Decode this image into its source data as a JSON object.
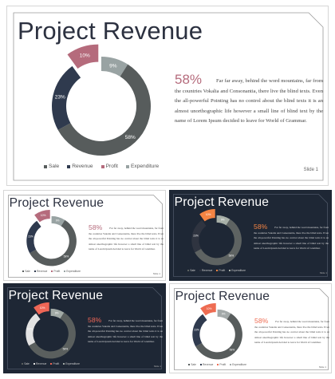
{
  "title": "Project Revenue",
  "big_percent": "58%",
  "body_text": "Far far away, behind the word mountains, far from the countries Vokalia and Consonantia, there live the blind texts. Even the all-powerful Pointing has no control about the blind texts it is an almost unorthographic life however a small line of blind text by the name of Lorem Ipsum decided to leave for World of Grammar.",
  "slide_number": "Slide 1",
  "chart_data": {
    "type": "pie",
    "categories": [
      "Sale",
      "Revenue",
      "Profit",
      "Expenditure"
    ],
    "values": [
      58,
      23,
      10,
      9
    ],
    "value_labels": [
      "58%",
      "23%",
      "10%",
      "9%"
    ],
    "exploded_category": "Profit"
  },
  "themes": {
    "light_gray": {
      "bg": "#ffffff",
      "title": "#2c3140",
      "text": "#444444",
      "accent": "#b56b7c",
      "colors": [
        "#575c5c",
        "#2f3a4e",
        "#b56b7c",
        "#99a3a3"
      ]
    },
    "light_orange": {
      "bg": "#ffffff",
      "title": "#2c3140",
      "text": "#444444",
      "accent": "#ee6c52",
      "colors": [
        "#575c5c",
        "#2f3a4e",
        "#ee6c52",
        "#a3a9a9"
      ]
    },
    "dark_orange": {
      "bg": "#1e2735",
      "title": "#ffffff",
      "text": "#dddddd",
      "accent": "#f48443",
      "colors": [
        "#5e6362",
        "#2f3440",
        "#f48443",
        "#a8b0a8"
      ]
    },
    "dark_red": {
      "bg": "#1e2735",
      "title": "#ffffff",
      "text": "#dddddd",
      "accent": "#ee6656",
      "colors": [
        "#5a5f5e",
        "#e3e3e3",
        "#ee6656",
        "#a2aaa6"
      ]
    }
  }
}
